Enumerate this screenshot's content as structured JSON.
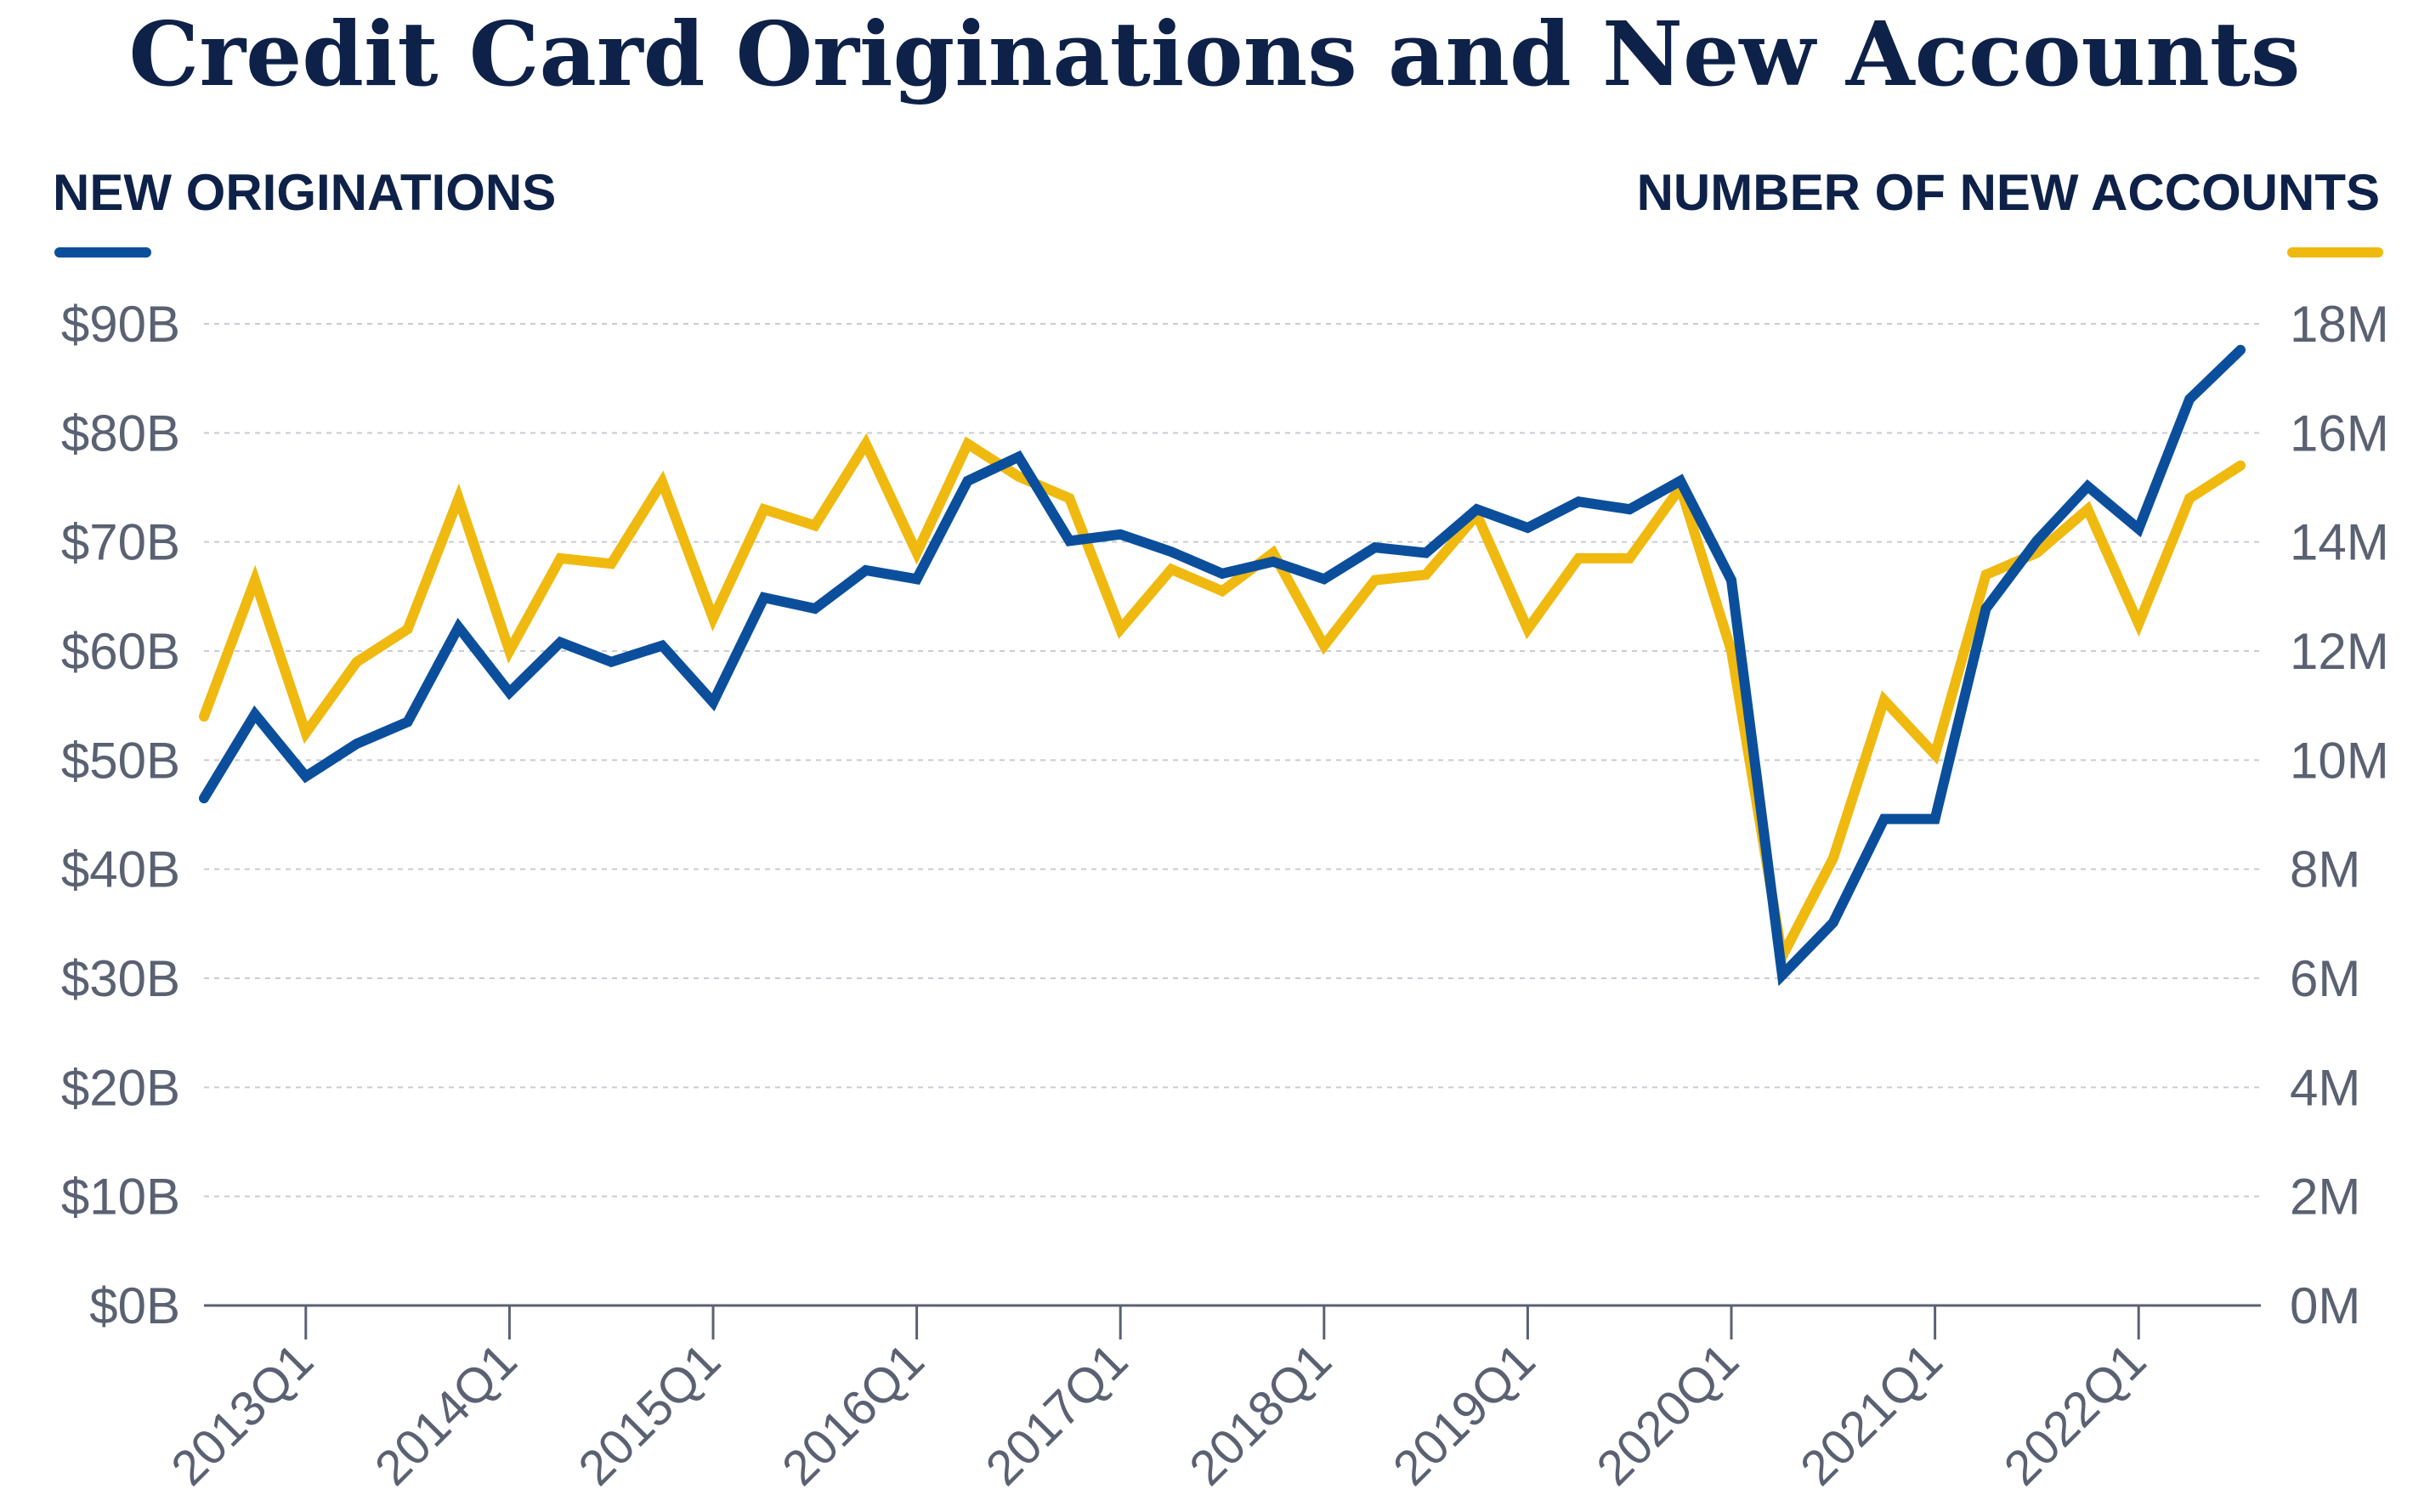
{
  "chart_data": {
    "type": "line",
    "title": "Credit Card Originations and New Accounts",
    "y_left_label": "NEW ORIGINATIONS",
    "y_right_label": "NUMBER OF NEW ACCOUNTS",
    "y_left_ticks": [
      "$0B",
      "$10B",
      "$20B",
      "$30B",
      "$40B",
      "$50B",
      "$60B",
      "$70B",
      "$80B",
      "$90B"
    ],
    "y_right_ticks": [
      "0M",
      "2M",
      "4M",
      "6M",
      "8M",
      "10M",
      "12M",
      "14M",
      "16M",
      "18M"
    ],
    "y_left_range": [
      0,
      90
    ],
    "y_right_range": [
      0,
      18
    ],
    "grid": true,
    "x_tick_labels": [
      "2013Q1",
      "2014Q1",
      "2015Q1",
      "2016Q1",
      "2017Q1",
      "2018Q1",
      "2019Q1",
      "2020Q1",
      "2021Q1",
      "2022Q1"
    ],
    "x": [
      "2012Q3",
      "2012Q4",
      "2013Q1",
      "2013Q2",
      "2013Q3",
      "2013Q4",
      "2014Q1",
      "2014Q2",
      "2014Q3",
      "2014Q4",
      "2015Q1",
      "2015Q2",
      "2015Q3",
      "2015Q4",
      "2016Q1",
      "2016Q2",
      "2016Q3",
      "2016Q4",
      "2017Q1",
      "2017Q2",
      "2017Q3",
      "2017Q4",
      "2018Q1",
      "2018Q2",
      "2018Q3",
      "2018Q4",
      "2019Q1",
      "2019Q2",
      "2019Q3",
      "2019Q4",
      "2020Q1",
      "2020Q2",
      "2020Q3",
      "2020Q4",
      "2021Q1",
      "2021Q2",
      "2021Q3",
      "2021Q4",
      "2022Q1",
      "2022Q2",
      "2022Q3"
    ],
    "series": [
      {
        "axis": "left",
        "color": "#0b4f9c",
        "unit": "$B",
        "values": [
          46.5,
          54.2,
          48.5,
          51.5,
          53.5,
          62.2,
          56.2,
          60.8,
          59.0,
          60.5,
          55.3,
          64.9,
          63.9,
          67.4,
          66.6,
          75.6,
          77.8,
          70.1,
          70.7,
          69.1,
          67.1,
          68.2,
          66.6,
          69.5,
          69.0,
          73.0,
          71.3,
          73.7,
          73.0,
          75.6,
          66.5,
          30.3,
          35.1,
          44.6,
          44.6,
          63.9,
          70.1,
          75.1,
          71.2,
          83.1,
          87.6
        ]
      },
      {
        "axis": "right",
        "color": "#f0b90f",
        "unit": "M",
        "values": [
          10.8,
          13.3,
          10.5,
          11.8,
          12.4,
          14.8,
          12.0,
          13.7,
          13.6,
          15.1,
          12.6,
          14.6,
          14.3,
          15.8,
          13.8,
          15.8,
          15.2,
          14.8,
          12.4,
          13.5,
          13.1,
          13.8,
          12.1,
          13.3,
          13.4,
          14.5,
          12.4,
          13.7,
          13.7,
          15.0,
          12.0,
          6.4,
          8.2,
          11.1,
          10.1,
          13.4,
          13.8,
          14.6,
          12.5,
          14.8,
          15.4
        ]
      }
    ]
  }
}
